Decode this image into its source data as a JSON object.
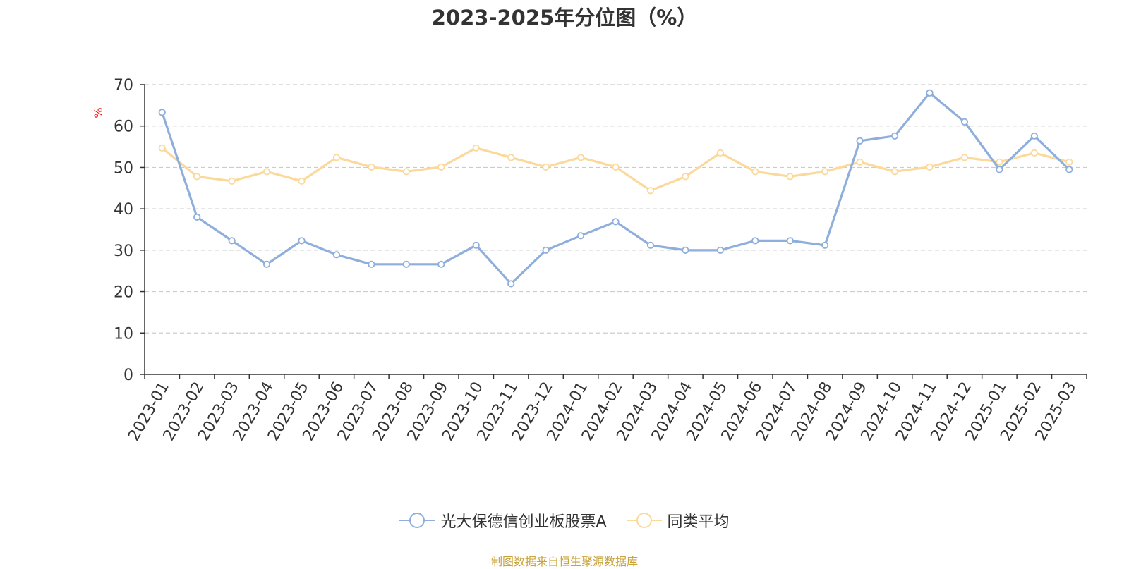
{
  "chart_data": {
    "type": "line",
    "title": "2023-2025年分位图（%）",
    "ylabel": "%",
    "xlabel": "",
    "ylim": [
      0,
      70
    ],
    "yticks": [
      0,
      10,
      20,
      30,
      40,
      50,
      60,
      70
    ],
    "grid": true,
    "legend_position": "bottom-center",
    "categories": [
      "2023-01",
      "2023-02",
      "2023-03",
      "2023-04",
      "2023-05",
      "2023-06",
      "2023-07",
      "2023-08",
      "2023-09",
      "2023-10",
      "2023-11",
      "2023-12",
      "2024-01",
      "2024-02",
      "2024-03",
      "2024-04",
      "2024-05",
      "2024-06",
      "2024-07",
      "2024-08",
      "2024-09",
      "2024-10",
      "2024-11",
      "2024-12",
      "2025-01",
      "2025-02",
      "2025-03"
    ],
    "series": [
      {
        "name": "光大保德信创业板股票A",
        "color": "#8eaedc",
        "values": [
          63.3,
          38.0,
          32.3,
          26.6,
          32.3,
          28.9,
          26.6,
          26.6,
          26.6,
          31.2,
          21.9,
          30.0,
          33.5,
          36.9,
          31.2,
          30.0,
          30.0,
          32.3,
          32.3,
          31.2,
          56.4,
          57.6,
          68.0,
          61.0,
          49.5,
          57.6,
          49.5
        ]
      },
      {
        "name": "同类平均",
        "color": "#fbd99a",
        "values": [
          54.7,
          47.8,
          46.7,
          49.0,
          46.7,
          52.4,
          50.1,
          49.0,
          50.1,
          54.7,
          52.4,
          50.1,
          52.4,
          50.1,
          44.4,
          47.8,
          53.5,
          49.0,
          47.8,
          49.0,
          51.3,
          49.0,
          50.1,
          52.4,
          51.3,
          53.5,
          51.3
        ]
      }
    ]
  },
  "source_note": "制图数据来自恒生聚源数据库"
}
